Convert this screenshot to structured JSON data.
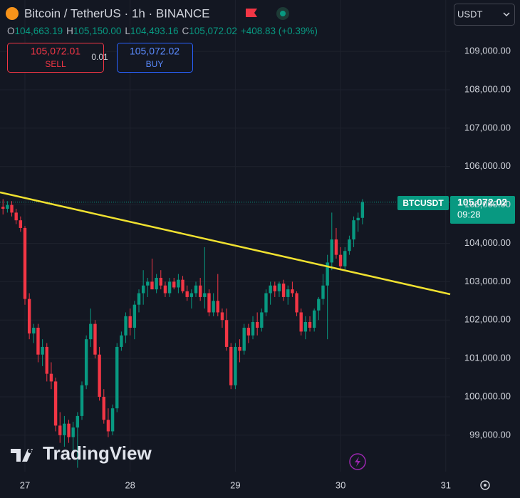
{
  "chart_data": {
    "type": "candlestick",
    "title": "Bitcoin / TetherUS · 1h · BINANCE",
    "ohlc_labels": [
      "O",
      "H",
      "L",
      "C"
    ],
    "ohlc_values": [
      "104,663.19",
      "105,150.00",
      "104,493.16",
      "105,072.02"
    ],
    "change": "+408.83 (+0.39%)",
    "sell_price": "105,072.01",
    "sell_label": "SELL",
    "spread": "0.01",
    "buy_price": "105,072.02",
    "buy_label": "BUY",
    "currency": "USDT",
    "price_tag": {
      "symbol": "BTCUSDT",
      "price": "105,072.02",
      "countdown": "09:28"
    },
    "watermark": "TradingView",
    "up_color": "#089981",
    "down_color": "#f23645",
    "categories": [
      null,
      null,
      null,
      null,
      null,
      "27",
      null,
      null,
      null,
      null,
      null,
      null,
      null,
      null,
      null,
      null,
      null,
      null,
      null,
      null,
      null,
      null,
      null,
      null,
      null,
      null,
      null,
      null,
      null,
      "28",
      null,
      null,
      null,
      null,
      null,
      null,
      null,
      null,
      null,
      null,
      null,
      null,
      null,
      null,
      null,
      null,
      null,
      null,
      null,
      null,
      null,
      null,
      null,
      "29",
      null,
      null,
      null,
      null,
      null,
      null,
      null,
      null,
      null,
      null,
      null,
      null,
      null,
      null,
      null,
      null,
      null,
      null,
      null,
      null,
      null,
      null,
      null,
      "30",
      null,
      null,
      null,
      null,
      null,
      null,
      null,
      null,
      null,
      null,
      null,
      null,
      null,
      null,
      null,
      null,
      null,
      null,
      null,
      null,
      null,
      null,
      null,
      "31"
    ],
    "open": [
      104950,
      104900,
      105000,
      104800,
      104600,
      104400,
      102550,
      101650,
      101800,
      101100,
      101300,
      100600,
      100400,
      99250,
      99000,
      99300,
      98950,
      99200,
      99500,
      100300,
      101500,
      101900,
      101100,
      100000,
      99400,
      99100,
      99700,
      101300,
      101600,
      102100,
      101800,
      102400,
      102700,
      102900,
      103000,
      102800,
      103100,
      102900,
      102700,
      103000,
      102850,
      103050,
      102750,
      102600,
      102700,
      102900,
      102600,
      102700,
      102200,
      102500,
      102200,
      102000,
      101300,
      100300,
      101300,
      101200,
      101800,
      101600,
      101950,
      101800,
      102200,
      102700,
      102900,
      102750,
      102950,
      102600,
      102800,
      102700,
      102200,
      101700,
      101950,
      101800,
      102250,
      102550,
      102900,
      103500,
      104100,
      103700,
      103400,
      103800,
      104100,
      104600,
      104663.19,
      null,
      null,
      null,
      null,
      null,
      null,
      null,
      null,
      null,
      null,
      null,
      null,
      null,
      null,
      null,
      null,
      null,
      null,
      null
    ],
    "high": [
      105150,
      105100,
      105100,
      104900,
      104700,
      104450,
      102700,
      101900,
      101900,
      101500,
      101400,
      100900,
      100500,
      99600,
      99500,
      99400,
      99350,
      99600,
      100400,
      101600,
      102300,
      102000,
      101300,
      100200,
      99700,
      99800,
      101400,
      101700,
      102200,
      102300,
      102500,
      102800,
      103300,
      103100,
      103600,
      103200,
      103300,
      103000,
      103100,
      103100,
      103200,
      103150,
      102900,
      102800,
      103000,
      103100,
      103900,
      102800,
      102700,
      103200,
      102300,
      102300,
      101400,
      101400,
      101500,
      101900,
      101900,
      102100,
      102200,
      102300,
      102800,
      103000,
      103000,
      103000,
      103050,
      102900,
      103000,
      102750,
      102300,
      102100,
      102100,
      102300,
      102600,
      103200,
      103700,
      104800,
      104400,
      103900,
      103900,
      104200,
      104700,
      104800,
      105150,
      null,
      null,
      null,
      null,
      null,
      null,
      null,
      null,
      null,
      null,
      null,
      null,
      null,
      null,
      null,
      null,
      null,
      null,
      null
    ],
    "low": [
      104750,
      104800,
      104700,
      104500,
      104300,
      102400,
      101500,
      101400,
      100900,
      100800,
      100400,
      100200,
      99100,
      98800,
      98700,
      98800,
      98600,
      98150,
      99400,
      100200,
      101300,
      101000,
      99900,
      99300,
      98950,
      99000,
      99600,
      101200,
      101400,
      101600,
      101500,
      102200,
      102400,
      102600,
      102800,
      102700,
      102800,
      102600,
      102600,
      102800,
      102700,
      102700,
      102500,
      102300,
      102600,
      102500,
      102300,
      102100,
      102100,
      102100,
      101800,
      101200,
      100200,
      100200,
      100900,
      101100,
      101400,
      101500,
      101600,
      101700,
      102100,
      102400,
      102600,
      102600,
      102500,
      102400,
      102600,
      102100,
      101600,
      101500,
      101700,
      101700,
      102000,
      102400,
      101500,
      103300,
      103600,
      103300,
      103300,
      103700,
      103900,
      104300,
      104493.16,
      null,
      null,
      null,
      null,
      null,
      null,
      null,
      null,
      null,
      null,
      null,
      null,
      null,
      null,
      null,
      null,
      null,
      null,
      null
    ],
    "close": [
      104900,
      105000,
      104800,
      104600,
      104400,
      102550,
      101650,
      101800,
      101100,
      101300,
      100600,
      100400,
      99250,
      99000,
      99300,
      98950,
      99200,
      99500,
      100300,
      101500,
      101900,
      101100,
      100000,
      99400,
      99100,
      99700,
      101300,
      101600,
      102100,
      101800,
      102400,
      102700,
      102900,
      103000,
      102800,
      103100,
      102900,
      102700,
      103000,
      102850,
      103050,
      102750,
      102600,
      102700,
      102900,
      102600,
      102700,
      102200,
      102500,
      102200,
      102000,
      101300,
      100300,
      101300,
      101200,
      101800,
      101600,
      101950,
      101800,
      102200,
      102700,
      102900,
      102750,
      102950,
      102600,
      102800,
      102700,
      102200,
      101700,
      101950,
      101800,
      102250,
      102550,
      102900,
      103500,
      104100,
      103700,
      103400,
      103800,
      104100,
      104600,
      104663.19,
      105072.02,
      null,
      null,
      null,
      null,
      null,
      null,
      null,
      null,
      null,
      null,
      null,
      null,
      null,
      null,
      null,
      null,
      null,
      null,
      null
    ],
    "ylim": [
      98050,
      110340
    ],
    "yticks": [
      {
        "value": 99000,
        "label": "99,000.00"
      },
      {
        "value": 100000,
        "label": "100,000.00"
      },
      {
        "value": 101000,
        "label": "101,000.00"
      },
      {
        "value": 102000,
        "label": "102,000.00"
      },
      {
        "value": 103000,
        "label": "103,000.00"
      },
      {
        "value": 104000,
        "label": "104,000.00"
      },
      {
        "value": 105000,
        "label": "105,000.00"
      },
      {
        "value": 106000,
        "label": "106,000.00"
      },
      {
        "value": 107000,
        "label": "107,000.00"
      },
      {
        "value": 108000,
        "label": "108,000.00"
      },
      {
        "value": 109000,
        "label": "109,000.00"
      }
    ],
    "grid": true
  }
}
